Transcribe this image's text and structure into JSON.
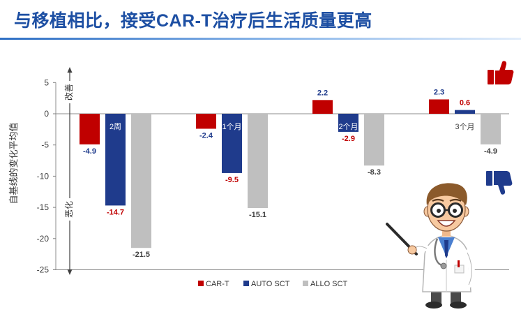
{
  "title": "与移植相比，接受CAR-T治疗后生活质量更高",
  "chart_data": {
    "type": "bar",
    "categories": [
      "2周",
      "1个月",
      "2个月",
      "3个月"
    ],
    "series": [
      {
        "name": "CAR-T",
        "values": [
          -4.9,
          -2.4,
          2.2,
          2.3
        ],
        "color": "#c00000",
        "label_color": "#1f3b8c"
      },
      {
        "name": "AUTO SCT",
        "values": [
          -14.7,
          -9.5,
          -2.9,
          0.6
        ],
        "color": "#1f3b8c",
        "label_color": "#c00000"
      },
      {
        "name": "ALLO SCT",
        "values": [
          -21.5,
          -15.1,
          -8.3,
          -4.9
        ],
        "color": "#bfbfbf",
        "label_color": "#404040"
      }
    ],
    "ylabel": "自基线的变化平均值",
    "ylim": [
      -25,
      5
    ],
    "yticks": [
      5,
      0,
      -5,
      -10,
      -15,
      -20,
      -25
    ],
    "annotations": {
      "improve": "改善",
      "worsen": "恶化"
    },
    "legend": "bottom",
    "grid": false
  },
  "icons": {
    "improve": "thumbs-up-icon",
    "worsen": "thumbs-down-icon",
    "illustration": "doctor-illustration"
  }
}
